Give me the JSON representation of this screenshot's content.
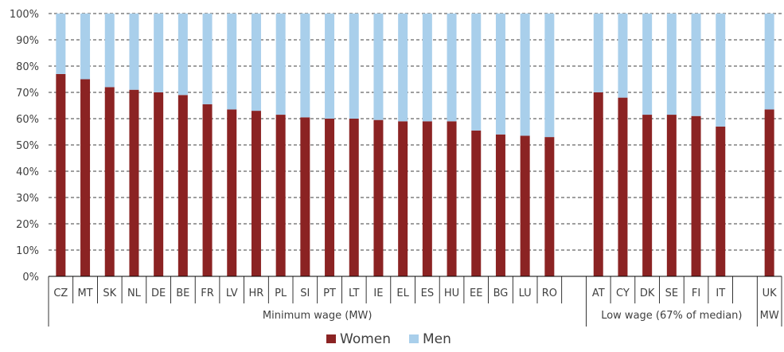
{
  "chart_data": {
    "type": "bar",
    "stacked": true,
    "percent_stacked": true,
    "categories": [
      "CZ",
      "MT",
      "SK",
      "NL",
      "DE",
      "BE",
      "FR",
      "LV",
      "HR",
      "PL",
      "SI",
      "PT",
      "LT",
      "IE",
      "EL",
      "ES",
      "HU",
      "EE",
      "BG",
      "LU",
      "RO",
      "",
      "AT",
      "CY",
      "DK",
      "SE",
      "FI",
      "IT",
      "",
      "UK"
    ],
    "groups": [
      {
        "label": "Minimum wage (MW)",
        "categories": [
          "CZ",
          "MT",
          "SK",
          "NL",
          "DE",
          "BE",
          "FR",
          "LV",
          "HR",
          "PL",
          "SI",
          "PT",
          "LT",
          "IE",
          "EL",
          "ES",
          "HU",
          "EE",
          "BG",
          "LU",
          "RO"
        ]
      },
      {
        "label": "Low wage (67% of median)",
        "categories": [
          "AT",
          "CY",
          "DK",
          "SE",
          "FI",
          "IT"
        ]
      },
      {
        "label": "UK MW",
        "line1": "UK",
        "line2": "MW",
        "categories": [
          "UK"
        ]
      }
    ],
    "series": [
      {
        "name": "Women",
        "color": "#8B2323",
        "values": [
          77,
          75,
          72,
          71,
          70,
          69,
          65.5,
          63.5,
          63,
          61.5,
          60.5,
          60,
          60,
          59.5,
          59,
          59,
          59,
          55.5,
          54,
          53.5,
          53,
          null,
          70,
          68,
          61.5,
          61.5,
          61,
          57,
          null,
          63.5
        ]
      },
      {
        "name": "Men",
        "color": "#A9CFEB",
        "values": [
          23,
          25,
          28,
          29,
          30,
          31,
          34.5,
          36.5,
          37,
          38.5,
          39.5,
          40,
          40,
          40.5,
          41,
          41,
          41,
          44.5,
          46,
          46.5,
          47,
          null,
          30,
          32,
          38.5,
          38.5,
          39,
          43,
          null,
          36.5
        ]
      }
    ],
    "ylim": [
      0,
      100
    ],
    "yticks": [
      "0%",
      "10%",
      "20%",
      "30%",
      "40%",
      "50%",
      "60%",
      "70%",
      "80%",
      "90%",
      "100%"
    ],
    "grid": true,
    "legend_position": "bottom",
    "xlabel": "",
    "ylabel": "",
    "title": ""
  }
}
